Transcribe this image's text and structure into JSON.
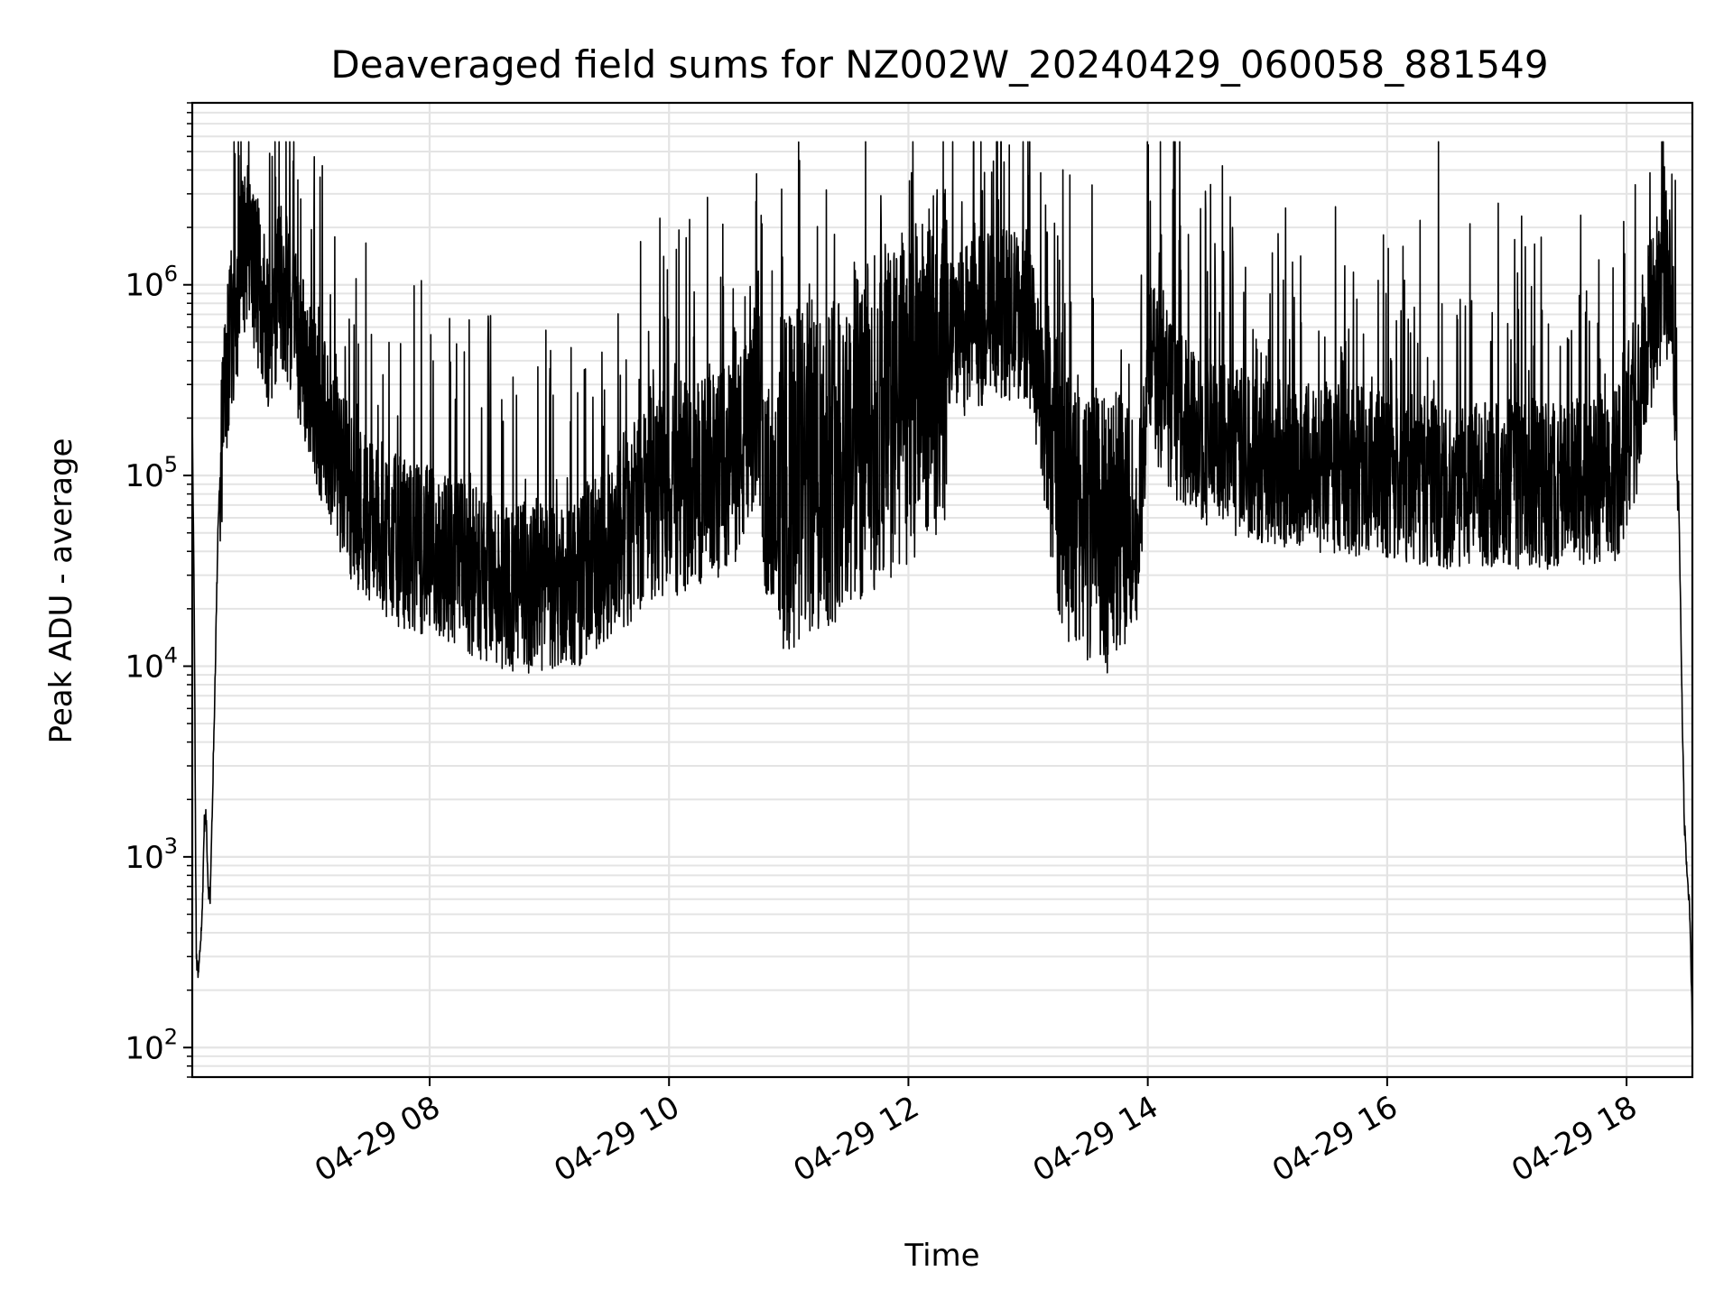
{
  "chart_data": {
    "type": "line",
    "title": "Deaveraged field sums for NZ002W_20240429_060058_881549",
    "xlabel": "Time",
    "ylabel": "Peak ADU - average",
    "x_axis": {
      "type": "time",
      "range": [
        "04-29 06:01",
        "04-29 18:33"
      ],
      "tick_labels": [
        "04-29 08",
        "04-29 10",
        "04-29 12",
        "04-29 14",
        "04-29 16",
        "04-29 18"
      ]
    },
    "y_axis": {
      "scale": "log",
      "range": [
        70,
        9000000
      ],
      "tick_labels": [
        {
          "base": "10",
          "exp": "2"
        },
        {
          "base": "10",
          "exp": "3"
        },
        {
          "base": "10",
          "exp": "4"
        },
        {
          "base": "10",
          "exp": "5"
        },
        {
          "base": "10",
          "exp": "6"
        }
      ]
    },
    "grid": true,
    "line_color": "#000000",
    "series": [
      {
        "points": [
          [
            "06:01",
            200000
          ],
          [
            "06:02",
            20000
          ],
          [
            "06:03",
            300
          ],
          [
            "06:04",
            230
          ],
          [
            "06:06",
            500
          ],
          [
            "06:07",
            1500
          ],
          [
            "06:08",
            1600
          ],
          [
            "06:09",
            700
          ],
          [
            "06:10",
            600
          ],
          [
            "06:12",
            5000
          ],
          [
            "06:14",
            60000
          ],
          [
            "06:17",
            250000
          ],
          [
            "06:22",
            700000
          ],
          [
            "06:26",
            1300000
          ],
          [
            "06:28",
            1800000
          ],
          [
            "06:31",
            1400000
          ],
          [
            "06:35",
            900000
          ],
          [
            "06:40",
            600000
          ],
          [
            "06:45",
            1100000
          ],
          [
            "06:50",
            700000
          ],
          [
            "06:55",
            500000
          ],
          [
            "07:00",
            300000
          ],
          [
            "07:10",
            150000
          ],
          [
            "07:20",
            80000
          ],
          [
            "07:30",
            60000
          ],
          [
            "07:45",
            45000
          ],
          [
            "08:00",
            40000
          ],
          [
            "08:15",
            35000
          ],
          [
            "08:30",
            28000
          ],
          [
            "08:45",
            26000
          ],
          [
            "09:00",
            25000
          ],
          [
            "09:15",
            28000
          ],
          [
            "09:30",
            40000
          ],
          [
            "09:45",
            70000
          ],
          [
            "10:00",
            80000
          ],
          [
            "10:15",
            90000
          ],
          [
            "10:30",
            110000
          ],
          [
            "10:40",
            150000
          ],
          [
            "10:45",
            300000
          ],
          [
            "10:48",
            80000
          ],
          [
            "11:00",
            90000
          ],
          [
            "11:30",
            150000
          ],
          [
            "12:00",
            250000
          ],
          [
            "12:15",
            400000
          ],
          [
            "12:30",
            600000
          ],
          [
            "12:45",
            700000
          ],
          [
            "13:00",
            700000
          ],
          [
            "13:10",
            150000
          ],
          [
            "13:20",
            70000
          ],
          [
            "13:40",
            50000
          ],
          [
            "13:55",
            45000
          ],
          [
            "14:00",
            400000
          ],
          [
            "14:15",
            200000
          ],
          [
            "14:30",
            150000
          ],
          [
            "15:00",
            120000
          ],
          [
            "15:30",
            110000
          ],
          [
            "16:00",
            100000
          ],
          [
            "16:30",
            90000
          ],
          [
            "17:00",
            90000
          ],
          [
            "17:30",
            90000
          ],
          [
            "17:55",
            100000
          ],
          [
            "18:05",
            200000
          ],
          [
            "18:12",
            600000
          ],
          [
            "18:18",
            1200000
          ],
          [
            "18:22",
            1000000
          ],
          [
            "18:24",
            500000
          ],
          [
            "18:26",
            100000
          ],
          [
            "18:28",
            5000
          ],
          [
            "18:29",
            1500
          ],
          [
            "18:30",
            1000
          ],
          [
            "18:31",
            700
          ],
          [
            "18:32",
            400
          ],
          [
            "18:33",
            120
          ]
        ]
      }
    ]
  }
}
